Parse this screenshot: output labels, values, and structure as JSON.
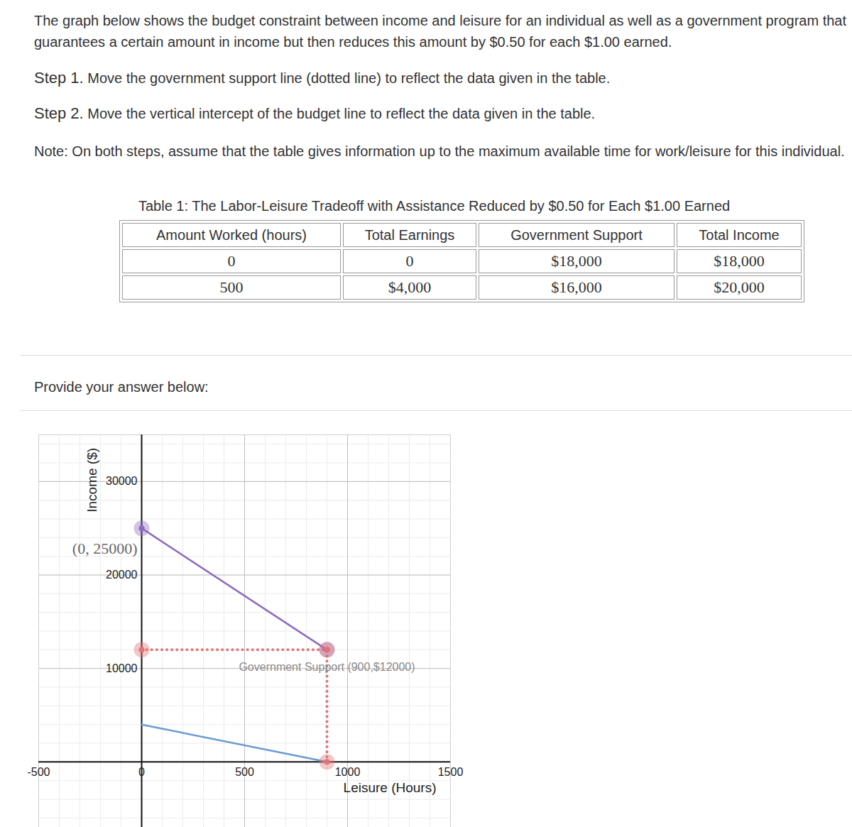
{
  "document": {
    "intro": "The graph below shows the budget constraint between income and leisure for an individual as well as a government program that guarantees a certain amount in income but then reduces this amount by $0.50 for each $1.00 earned.",
    "steps": [
      {
        "label": "Step 1.",
        "text": "Move the government support line (dotted line) to reflect the data given in the table."
      },
      {
        "label": "Step 2.",
        "text": "Move the vertical intercept of the budget line to reflect the data given in the table."
      }
    ],
    "note": "Note: On both steps, assume that the table gives information up to the maximum available time for work/leisure for this individual.",
    "table": {
      "caption": "Table 1: The Labor-Leisure Tradeoff with Assistance Reduced by $0.50 for Each $1.00 Earned",
      "header": [
        "Amount Worked (hours)",
        "Total Earnings",
        "Government Support",
        "Total Income"
      ],
      "rows": [
        [
          "0",
          "0",
          "$18,000",
          "$18,000"
        ],
        [
          "500",
          "$4,000",
          "$16,000",
          "$20,000"
        ]
      ]
    },
    "prompt": "Provide your answer below:"
  },
  "chart_data": {
    "type": "line",
    "xlabel": "Leisure (Hours)",
    "ylabel": "Income ($)",
    "xlim": [
      -500,
      1500
    ],
    "ylim": [
      -7000,
      35000
    ],
    "xticks": [
      -500,
      0,
      500,
      1000,
      1500
    ],
    "yticks": [
      10000,
      20000,
      30000
    ],
    "grid": true,
    "series": [
      {
        "color": "#8b6bbf",
        "x": [
          0,
          900
        ],
        "values": [
          25000,
          12000
        ],
        "marker": "circle",
        "line_style": "solid"
      },
      {
        "color": "#e07474",
        "x": [
          0,
          900,
          900
        ],
        "values": [
          12000,
          12000,
          0
        ],
        "marker": "circle",
        "line_style": "dotted"
      },
      {
        "color": "#6a9bd0",
        "x": [
          0,
          900
        ],
        "values": [
          4000,
          0
        ],
        "line_style": "solid"
      }
    ],
    "annotations": [
      {
        "text": "(0, 25000)",
        "x": 0,
        "y": 25000
      },
      {
        "text": "Government Support (900,$12000)",
        "x": 900,
        "y": 12000
      }
    ]
  }
}
